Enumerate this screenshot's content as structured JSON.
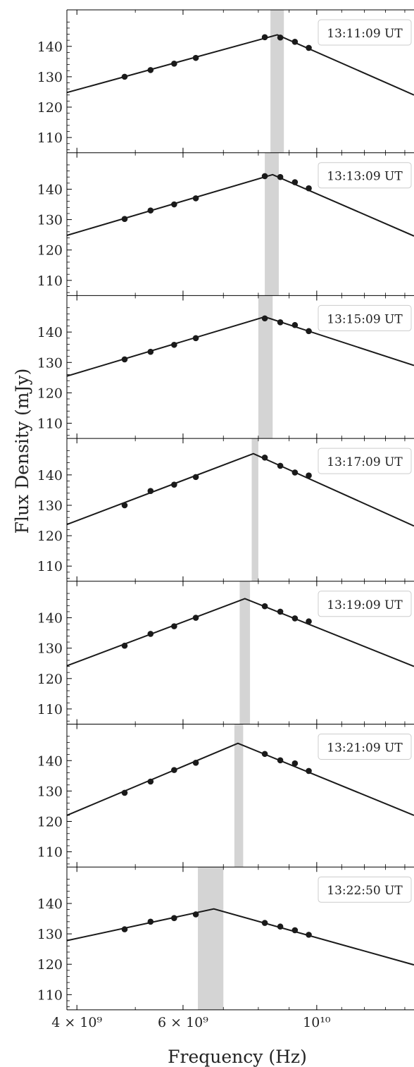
{
  "figure": {
    "ylabel": "Flux Density (mJy)",
    "xlabel": "Frequency (Hz)"
  },
  "chart_data": {
    "type": "line",
    "x_scale": "log",
    "y_scale": "linear",
    "xlim": [
      3850000000.0,
      14500000000.0
    ],
    "ylim": [
      105,
      152
    ],
    "x_ticks": [
      {
        "value": 4000000000.0,
        "label": "4 × 10⁹"
      },
      {
        "value": 6000000000.0,
        "label": "6 × 10⁹"
      },
      {
        "value": 10000000000.0,
        "label": "10¹⁰"
      }
    ],
    "y_ticks": [
      110,
      120,
      130,
      140
    ],
    "obs_x": [
      4800000000.0,
      5300000000.0,
      5800000000.0,
      6300000000.0,
      8200000000.0,
      8700000000.0,
      9200000000.0,
      9700000000.0
    ],
    "panels": [
      {
        "label": "13:11:09 UT",
        "points": [
          130.0,
          132.2,
          134.3,
          136.2,
          143.0,
          142.9,
          141.5,
          139.5
        ],
        "model": [
          [
            3850000000.0,
            124.8
          ],
          [
            8600000000.0,
            143.8
          ],
          [
            14500000000.0,
            124.0
          ]
        ],
        "band": [
          8380000000.0,
          8820000000.0
        ]
      },
      {
        "label": "13:13:09 UT",
        "points": [
          130.2,
          133.0,
          135.0,
          137.0,
          144.3,
          144.0,
          142.3,
          140.3
        ],
        "model": [
          [
            3850000000.0,
            124.8
          ],
          [
            8450000000.0,
            144.8
          ],
          [
            14500000000.0,
            124.6
          ]
        ],
        "band": [
          8200000000.0,
          8650000000.0
        ]
      },
      {
        "label": "13:15:09 UT",
        "points": [
          131.0,
          133.5,
          135.8,
          138.0,
          144.5,
          143.2,
          142.3,
          140.3
        ],
        "model": [
          [
            3850000000.0,
            125.5
          ],
          [
            8200000000.0,
            145.0
          ],
          [
            14500000000.0,
            129.0
          ]
        ],
        "band": [
          8000000000.0,
          8450000000.0
        ]
      },
      {
        "label": "13:17:09 UT",
        "points": [
          130.0,
          134.7,
          136.8,
          139.3,
          145.7,
          143.0,
          140.8,
          139.8
        ],
        "model": [
          [
            3850000000.0,
            123.7
          ],
          [
            7850000000.0,
            147.0
          ],
          [
            14500000000.0,
            123.2
          ]
        ],
        "band": [
          7800000000.0,
          8000000000.0
        ]
      },
      {
        "label": "13:19:09 UT",
        "points": [
          130.8,
          134.7,
          137.2,
          140.0,
          143.8,
          142.0,
          139.8,
          138.8
        ],
        "model": [
          [
            3850000000.0,
            124.2
          ],
          [
            7600000000.0,
            146.3
          ],
          [
            14500000000.0,
            124.0
          ]
        ],
        "band": [
          7450000000.0,
          7750000000.0
        ]
      },
      {
        "label": "13:21:09 UT",
        "points": [
          129.4,
          133.1,
          136.9,
          139.3,
          142.2,
          140.1,
          139.1,
          136.6
        ],
        "model": [
          [
            3850000000.0,
            122.0
          ],
          [
            7400000000.0,
            145.7
          ],
          [
            14500000000.0,
            122.0
          ]
        ],
        "band": [
          7300000000.0,
          7550000000.0
        ]
      },
      {
        "label": "13:22:50 UT",
        "points": [
          131.5,
          134.0,
          135.2,
          136.4,
          133.6,
          132.4,
          131.2,
          129.7
        ],
        "model": [
          [
            3850000000.0,
            127.8
          ],
          [
            6750000000.0,
            138.2
          ],
          [
            14500000000.0,
            119.8
          ]
        ],
        "band": [
          6350000000.0,
          7000000000.0
        ]
      }
    ]
  }
}
